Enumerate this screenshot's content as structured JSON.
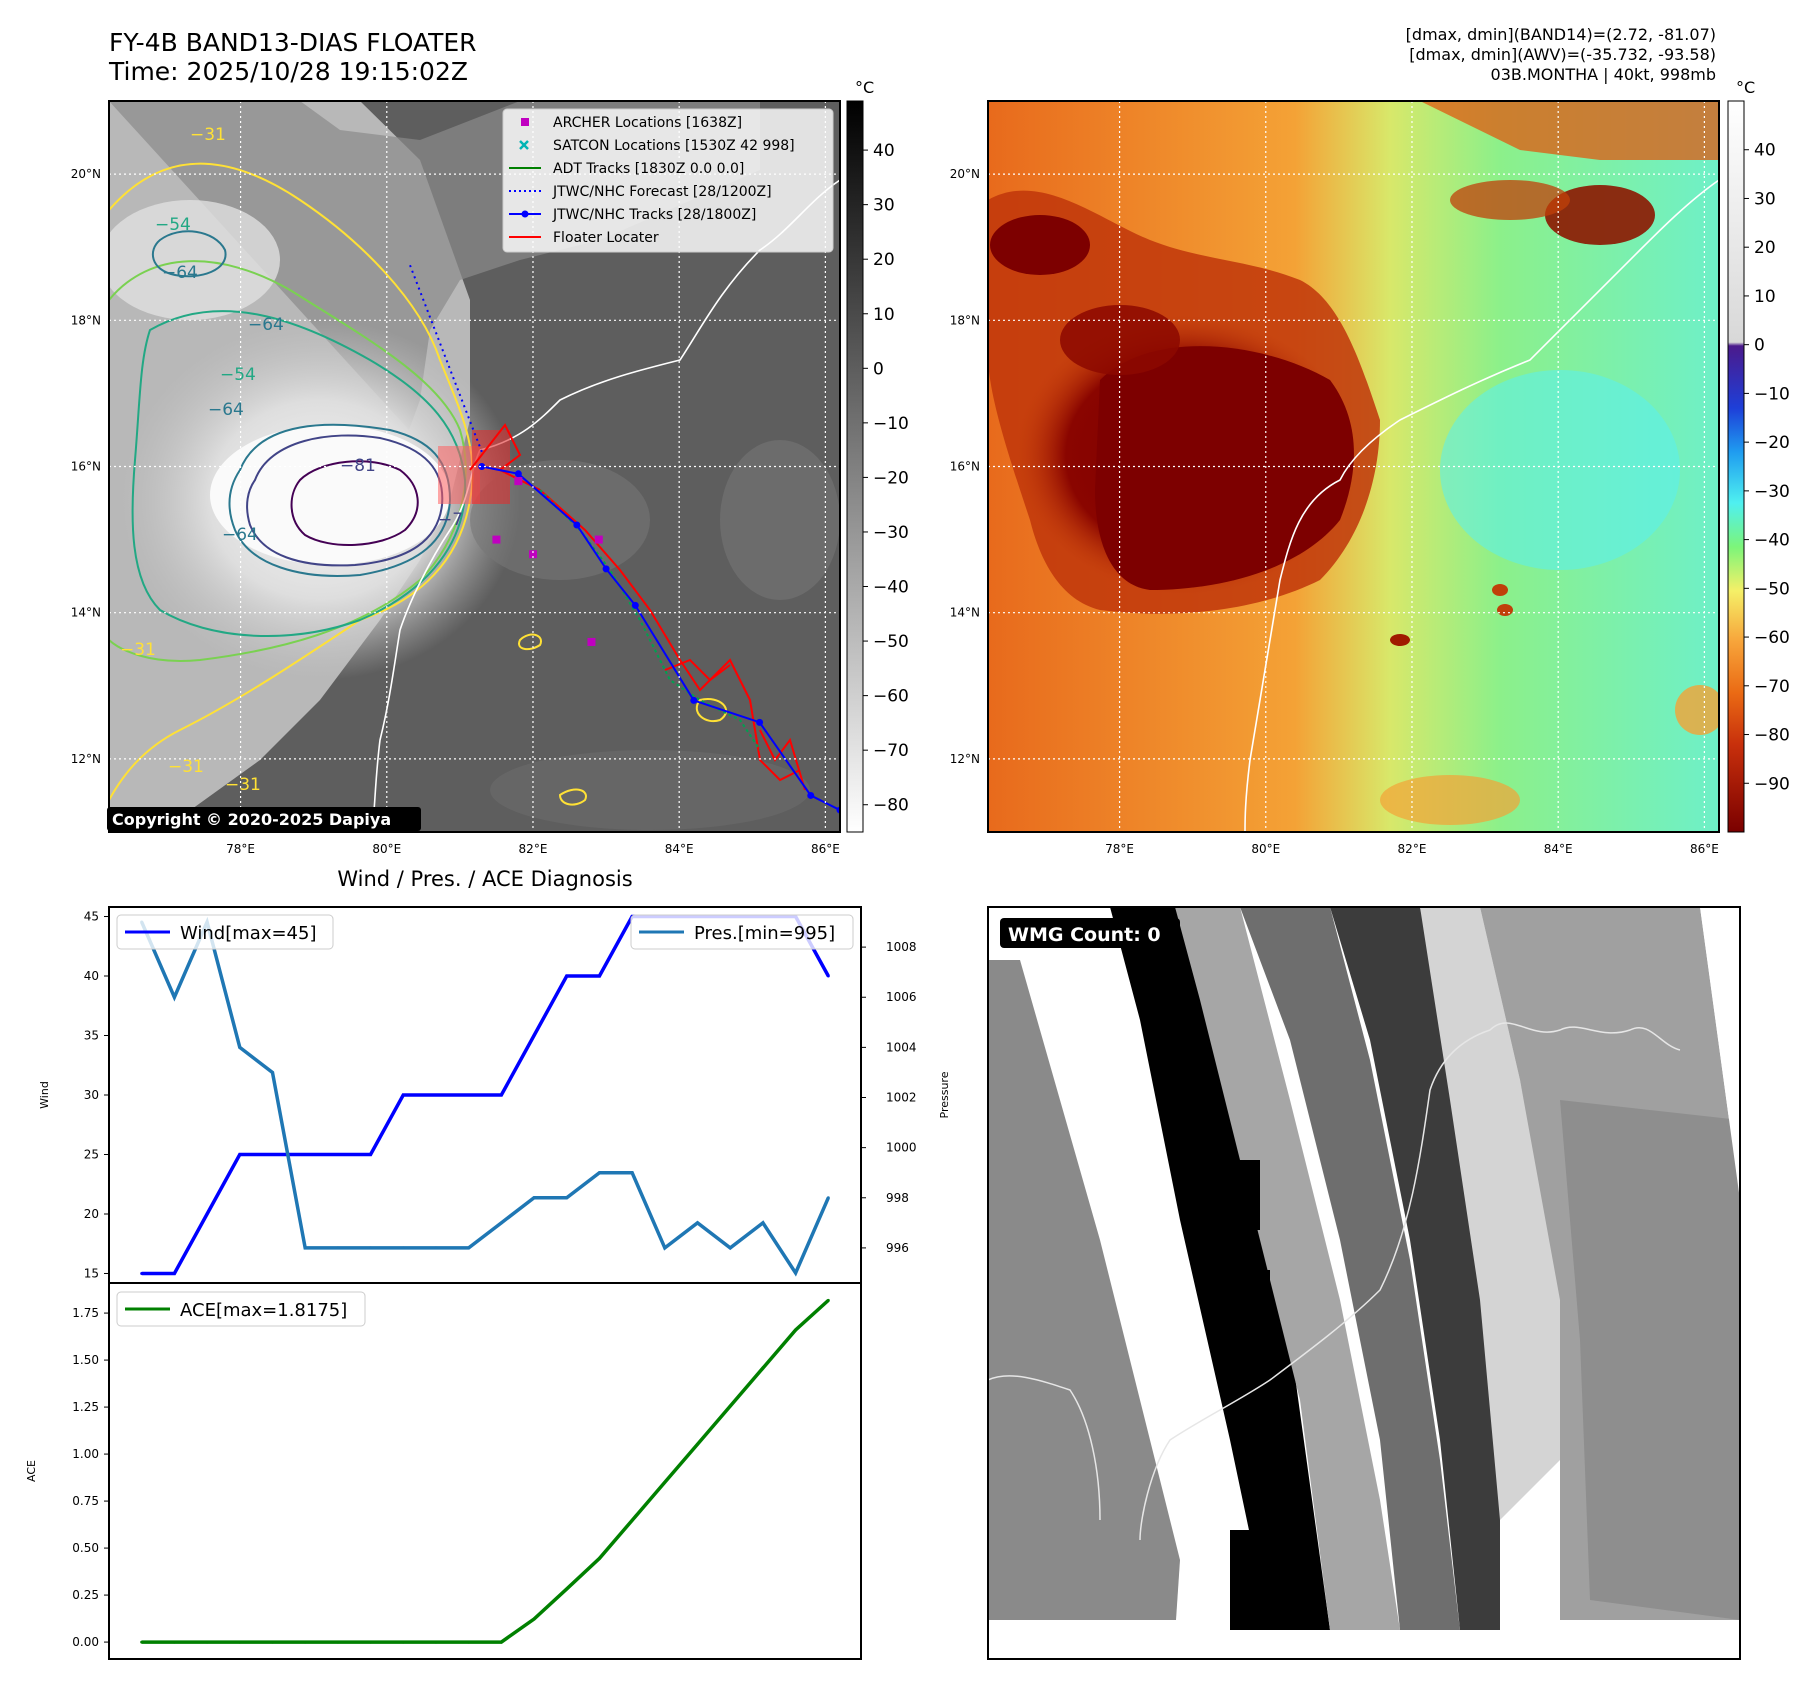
{
  "header": {
    "title_line1": "FY-4B BAND13-DIAS FLOATER",
    "title_line2": "Time: 2025/10/28 19:15:02Z",
    "info_line1": "[dmax, dmin](BAND14)=(2.72, -81.07)",
    "info_line2": "[dmax, dmin](AWV)=(-35.732, -93.58)",
    "info_line3": "03B.MONTHA | 40kt, 998mb"
  },
  "map_axes": {
    "lon_labels": [
      "78°E",
      "80°E",
      "82°E",
      "84°E",
      "86°E"
    ],
    "lat_labels": [
      "20°N",
      "18°N",
      "16°N",
      "14°N",
      "12°N"
    ],
    "lon_values": [
      78,
      80,
      82,
      84,
      86
    ],
    "lat_values": [
      20,
      18,
      16,
      14,
      12
    ],
    "lon_range": [
      76.2,
      86.2
    ],
    "lat_range": [
      11.0,
      21.0
    ]
  },
  "ir_panel": {
    "copyright": "Copyright © 2020-2025 Dapiya",
    "contour_labels": [
      "−31",
      "−54",
      "−64",
      "−64",
      "−64",
      "−54",
      "−64",
      "−81",
      "−7",
      "−31",
      "−31",
      "−31"
    ],
    "colorbar": {
      "unit": "°C",
      "ticks": [
        "40",
        "30",
        "20",
        "10",
        "0",
        "−10",
        "−20",
        "−30",
        "−40",
        "−50",
        "−60",
        "−70",
        "−80"
      ],
      "tick_values": [
        40,
        30,
        20,
        10,
        0,
        -10,
        -20,
        -30,
        -40,
        -50,
        -60,
        -70,
        -80
      ],
      "range": [
        -85,
        49
      ]
    },
    "legend": [
      {
        "label": "ARCHER Locations [1638Z]",
        "color": "#c000c0"
      },
      {
        "label": "SATCON Locations [1530Z 42 998]",
        "color": "#00b4b4"
      },
      {
        "label": "ADT Tracks [1830Z 0.0 0.0]",
        "color": "#008000"
      },
      {
        "label": "JTWC/NHC Forecast [28/1200Z]",
        "color": "#0000ff"
      },
      {
        "label": "JTWC/NHC Tracks [28/1800Z]",
        "color": "#0000ff"
      },
      {
        "label": "Floater Locater",
        "color": "#ff0000"
      }
    ],
    "jtwc_track": [
      [
        86.2,
        11.3
      ],
      [
        85.8,
        11.5
      ],
      [
        85.1,
        12.5
      ],
      [
        84.2,
        12.8
      ],
      [
        83.4,
        14.1
      ],
      [
        83.0,
        14.6
      ],
      [
        82.6,
        15.2
      ],
      [
        81.8,
        15.9
      ],
      [
        81.3,
        16.0
      ]
    ],
    "jtwc_forecast": [
      [
        81.3,
        16.2
      ],
      [
        80.3,
        18.8
      ]
    ],
    "archer_points": [
      [
        81.8,
        15.8
      ],
      [
        81.5,
        15.0
      ],
      [
        82.0,
        14.8
      ],
      [
        82.8,
        13.6
      ],
      [
        82.9,
        15.0
      ]
    ]
  },
  "wv_panel": {
    "colorbar": {
      "unit": "°C",
      "ticks": [
        "40",
        "30",
        "20",
        "10",
        "0",
        "−10",
        "−20",
        "−30",
        "−40",
        "−50",
        "−60",
        "−70",
        "−80",
        "−90"
      ],
      "tick_values": [
        40,
        30,
        20,
        10,
        0,
        -10,
        -20,
        -30,
        -40,
        -50,
        -60,
        -70,
        -80,
        -90
      ],
      "range": [
        -100,
        50
      ]
    }
  },
  "diag_title": "Wind / Pres. / ACE Diagnosis",
  "chart_data": [
    {
      "type": "line",
      "title": "Wind / Pres. / ACE Diagnosis",
      "x": [
        0,
        1,
        2,
        3,
        4,
        5,
        6,
        7,
        8,
        9,
        10,
        11,
        12,
        13,
        14,
        15,
        16,
        17,
        18,
        19,
        20,
        21
      ],
      "series": [
        {
          "name": "Wind[max=45]",
          "axis": "left",
          "color": "#0000ff",
          "values": [
            15,
            15,
            20,
            25,
            25,
            25,
            25,
            25,
            30,
            30,
            30,
            30,
            35,
            40,
            40,
            45,
            45,
            45,
            45,
            45,
            45,
            40
          ]
        },
        {
          "name": "Pres.[min=995]",
          "axis": "right",
          "color": "#1f77b4",
          "values": [
            1009,
            1006,
            1009,
            1004,
            1003,
            996,
            996,
            996,
            996,
            996,
            996,
            997,
            998,
            998,
            999,
            999,
            996,
            997,
            996,
            997,
            995,
            998
          ]
        }
      ],
      "ylabel": "Wind",
      "ylabel_right": "Pressure",
      "ylim": [
        14.2,
        45.8
      ],
      "ylim_right": [
        994.6,
        1009.6
      ],
      "yticks": [
        15,
        20,
        25,
        30,
        35,
        40,
        45
      ],
      "yticks_right": [
        996,
        998,
        1000,
        1002,
        1004,
        1006,
        1008
      ]
    },
    {
      "type": "line",
      "x": [
        0,
        1,
        2,
        3,
        4,
        5,
        6,
        7,
        8,
        9,
        10,
        11,
        12,
        13,
        14,
        15,
        16,
        17,
        18,
        19,
        20,
        21
      ],
      "series": [
        {
          "name": "ACE[max=1.8175]",
          "color": "#008000",
          "values": [
            0,
            0,
            0,
            0,
            0,
            0,
            0,
            0,
            0,
            0,
            0,
            0,
            0.1225,
            0.2825,
            0.445,
            0.6475,
            0.85,
            1.0525,
            1.255,
            1.4575,
            1.66,
            1.8175
          ]
        }
      ],
      "ylabel": "ACE",
      "ylim": [
        -0.09,
        1.91
      ],
      "yticks": [
        0.0,
        0.25,
        0.5,
        0.75,
        1.0,
        1.25,
        1.5,
        1.75
      ],
      "ytick_labels": [
        "0.00",
        "0.25",
        "0.50",
        "0.75",
        "1.00",
        "1.25",
        "1.50",
        "1.75"
      ]
    }
  ],
  "wmg_panel": {
    "badge": "WMG Count: 0"
  }
}
